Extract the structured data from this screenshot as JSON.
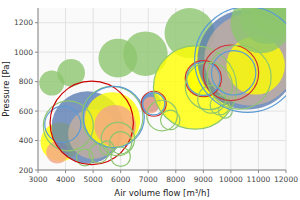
{
  "chart_data": {
    "type": "bubble",
    "xlabel": "Air volume flow [m³/h]",
    "ylabel": "Pressure [Pa]",
    "xlim": [
      3000,
      12000
    ],
    "ylim": [
      200,
      1300
    ],
    "xticks": [
      3000,
      4000,
      5000,
      6000,
      7000,
      8000,
      9000,
      10000,
      11000,
      12000
    ],
    "yticks": [
      200,
      400,
      600,
      800,
      1000,
      1200
    ],
    "grid": true,
    "series": [
      {
        "marker": "filled",
        "x": [
          3500,
          3800,
          3700,
          4200,
          4800,
          5000,
          5700,
          5800,
          5900,
          6900,
          7100,
          7100,
          8500,
          8700,
          9100,
          10000,
          10200,
          10600,
          10700,
          10900,
          11100,
          11300,
          11500
        ],
        "values": [
          790,
          390,
          320,
          860,
          490,
          445,
          540,
          500,
          960,
          990,
          660,
          640,
          1130,
          760,
          820,
          860,
          840,
          950,
          950,
          910,
          1200,
          1235,
          1265
        ],
        "sizes": [
          9,
          14,
          8,
          10,
          26,
          18,
          20,
          15,
          14,
          16,
          7,
          6,
          18,
          30,
          14,
          16,
          19,
          36,
          33,
          21,
          22,
          19,
          15
        ],
        "colors": [
          "#8DC66E",
          "#FFFF00",
          "#F4A58A",
          "#8DC66E",
          "#5B7DB1",
          "#C4AFA0",
          "#FFFF00",
          "#F4A58A",
          "#8DC66E",
          "#8DC66E",
          "#5B7DB1",
          "#F4A58A",
          "#8DC66E",
          "#FFFF00",
          "#FFFF00",
          "#FFFF00",
          "#FFFF00",
          "#5B7DB1",
          "#C4AFA0",
          "#FFFF00",
          "#8DC66E",
          "#8DC66E",
          "#8DC66E"
        ]
      },
      {
        "marker": "hollow",
        "x": [
          3900,
          4100,
          4700,
          4950,
          5200,
          5500,
          5700,
          5750,
          5900,
          6000,
          6000,
          7200,
          7200,
          7500,
          7800,
          8700,
          9000,
          9000,
          9200,
          9300,
          9600,
          9800,
          10000,
          10100,
          10300,
          10600
        ],
        "values": [
          510,
          500,
          285,
          520,
          315,
          350,
          560,
          560,
          410,
          385,
          290,
          650,
          650,
          570,
          540,
          760,
          820,
          820,
          770,
          680,
          640,
          600,
          860,
          860,
          830,
          950
        ],
        "sizes": [
          13,
          18,
          6,
          30,
          7,
          5,
          22,
          22,
          12,
          8,
          7,
          9,
          8,
          11,
          7,
          30,
          13,
          12,
          17,
          10,
          7,
          5,
          20,
          16,
          23,
          38
        ],
        "colors": [
          "#5B9BD5",
          "#8DC66E",
          "#8DC66E",
          "#cc0000",
          "#8DC66E",
          "#8DC66E",
          "#8DC66E",
          "#5B9BD5",
          "#8DC66E",
          "#8DC66E",
          "#8DC66E",
          "#cc3333",
          "#5B9BD5",
          "#8DC66E",
          "#8DC66E",
          "#8DC66E",
          "#cc3333",
          "#5B9BD5",
          "#8DC66E",
          "#8DC66E",
          "#8DC66E",
          "#8DC66E",
          "#cc3333",
          "#5B9BD5",
          "#8DC66E",
          "#5B9BD5"
        ]
      }
    ]
  }
}
